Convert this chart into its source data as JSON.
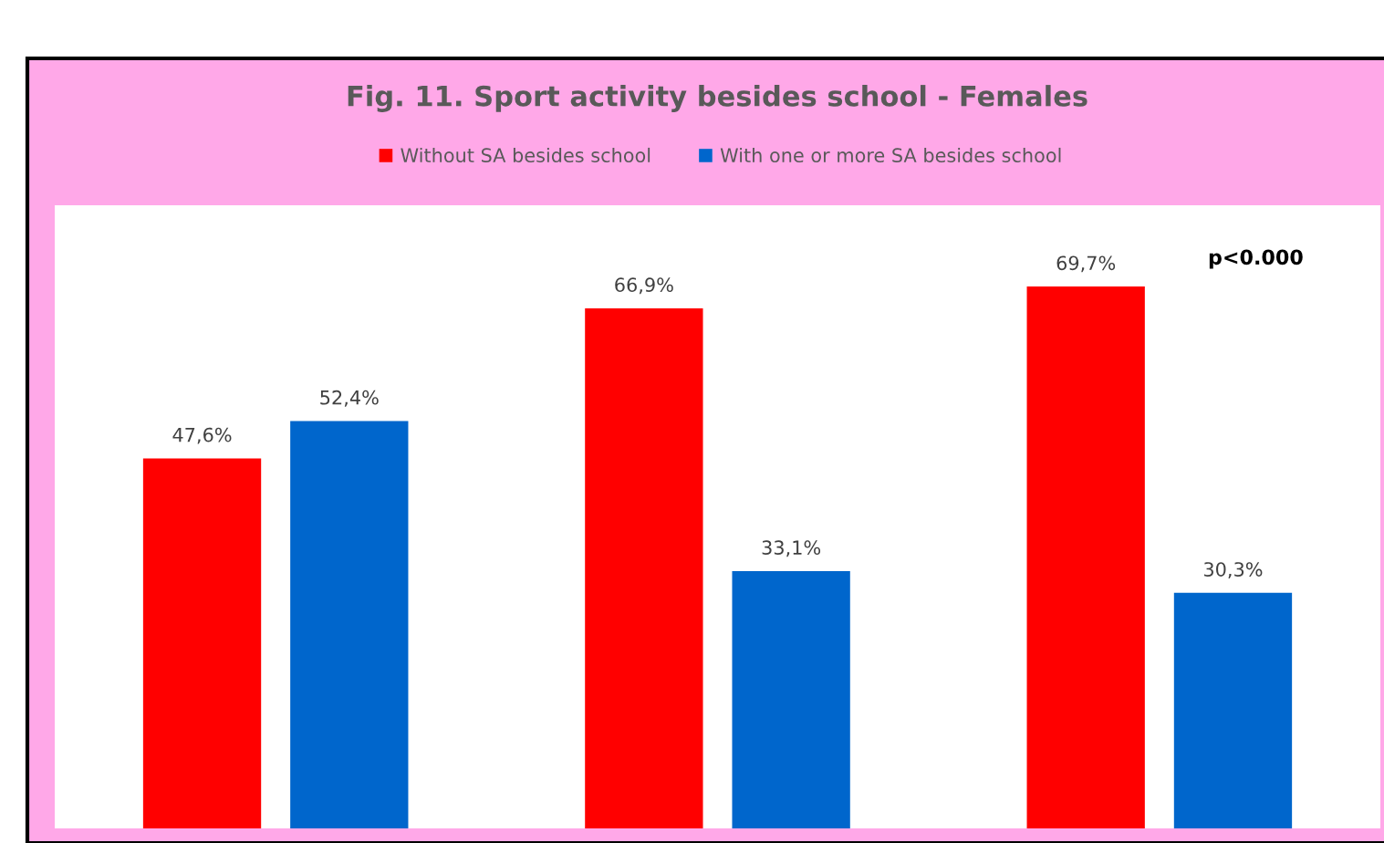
{
  "chart_data": {
    "type": "bar",
    "title": "Fig. 11. Sport activity besides school - Females",
    "categories": [
      null,
      null,
      null
    ],
    "series": [
      {
        "name": "Without SA besides school",
        "color": "#ff0000",
        "values": [
          47.6,
          66.9,
          69.7
        ],
        "value_labels": [
          "47,6%",
          "66,9%",
          "69,7%"
        ]
      },
      {
        "name": "With one or more SA besides school",
        "color": "#0066cc",
        "values": [
          52.4,
          33.1,
          30.3
        ],
        "value_labels": [
          "52,4%",
          "33,1%",
          "30,3%"
        ]
      }
    ],
    "legend": "top",
    "tick_labels": false,
    "annotations": [
      "p<0.000"
    ]
  }
}
